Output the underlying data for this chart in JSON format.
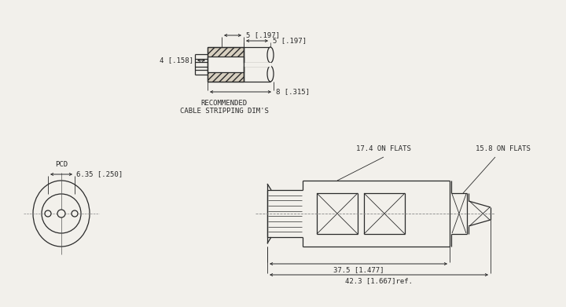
{
  "bg_color": "#f2f0eb",
  "line_color": "#2a2a2a",
  "dim_color": "#2a2a2a",
  "font_size": 6.5,
  "fig_width": 7.2,
  "fig_height": 3.91,
  "dpi": 100,
  "top": {
    "label_4": "4 [.158]",
    "label_5a": "5 [.197]",
    "label_5b": "5 [.197]",
    "label_8": "8 [.315]",
    "caption1": "RECOMMENDED",
    "caption2": "CABLE STRIPPING DIM'S"
  },
  "bottom": {
    "label_pcd": "PCD",
    "label_635": "6.35 [.250]",
    "label_17": "17.4 ON FLATS",
    "label_158": "15.8 ON FLATS",
    "label_375": "37.5 [1.477]",
    "label_423": "42.3 [1.667]ref."
  }
}
